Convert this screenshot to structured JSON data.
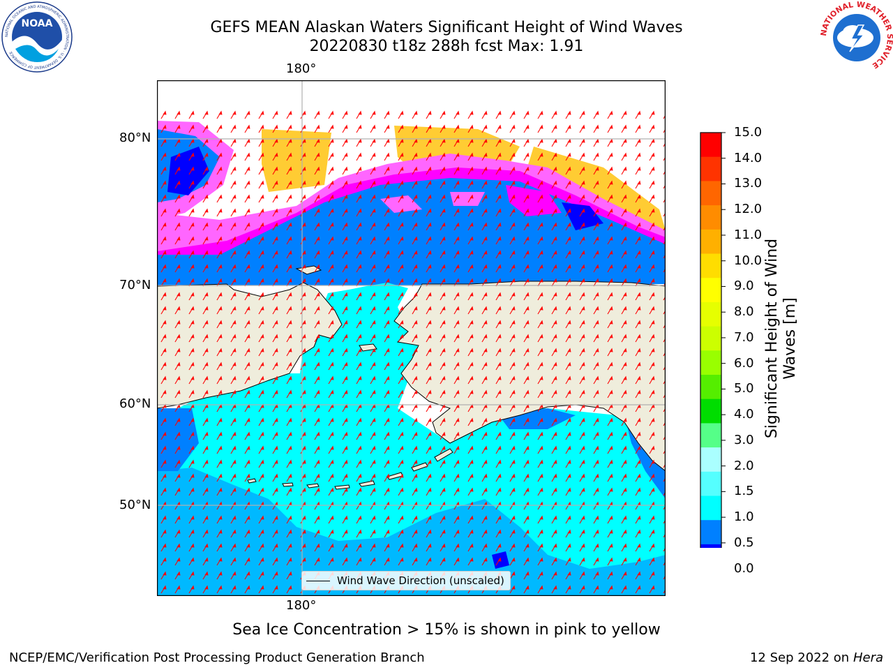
{
  "header": {
    "title_line1": "GEFS MEAN Alaskan Waters Significant Height of Wind Waves",
    "title_line2": "20220830 t18z 288h fcst   Max: 1.91"
  },
  "logos": {
    "noaa": {
      "text": "NOAA",
      "ring_text": "NATIONAL OCEANIC AND ATMOSPHERIC ADMINISTRATION · U.S. DEPARTMENT OF COMMERCE"
    },
    "nws": {
      "ring_text": "NATIONAL WEATHER SERVICE"
    }
  },
  "map": {
    "lon_top_label": "180°",
    "lon_bottom_label": "180°",
    "lat_labels": [
      "80°N",
      "70°N",
      "60°N",
      "50°N"
    ],
    "colors": {
      "land": "#efeddc",
      "ocean_low": "#0080ff",
      "ocean_high": "#00ffff",
      "ice_pink": "#ff66ff",
      "ice_magenta": "#ff00ff",
      "ice_yellow": "#ffcc33",
      "arrow": "#ff0000",
      "grid": "#b0b0b0"
    }
  },
  "legend": {
    "label": "Wind Wave Direction (unscaled)"
  },
  "colorbar": {
    "label_line1": "Significant Height of Wind",
    "label_line2": "Waves [m]",
    "ticks": [
      "15.0",
      "14.0",
      "13.0",
      "12.0",
      "11.0",
      "10.0",
      "9.0",
      "8.0",
      "7.0",
      "6.0",
      "5.0",
      "4.0",
      "3.0",
      "2.0",
      "1.5",
      "1.0",
      "0.5",
      "0.0"
    ],
    "colors": [
      "#ff0000",
      "#ff3300",
      "#ff6600",
      "#ff8c00",
      "#ffb000",
      "#ffdd00",
      "#ffff00",
      "#e6ff00",
      "#ccff00",
      "#99ff00",
      "#55ee00",
      "#00dd00",
      "#55ff88",
      "#aaffff",
      "#55ffff",
      "#00ffff",
      "#0080ff",
      "#0000ff"
    ]
  },
  "subtitle": "Sea Ice Concentration > 15% is shown in pink to yellow",
  "footer": {
    "left": "NCEP/EMC/Verification Post Processing Product Generation Branch",
    "right_date": "12 Sep 2022 on",
    "right_host": "Hera"
  }
}
